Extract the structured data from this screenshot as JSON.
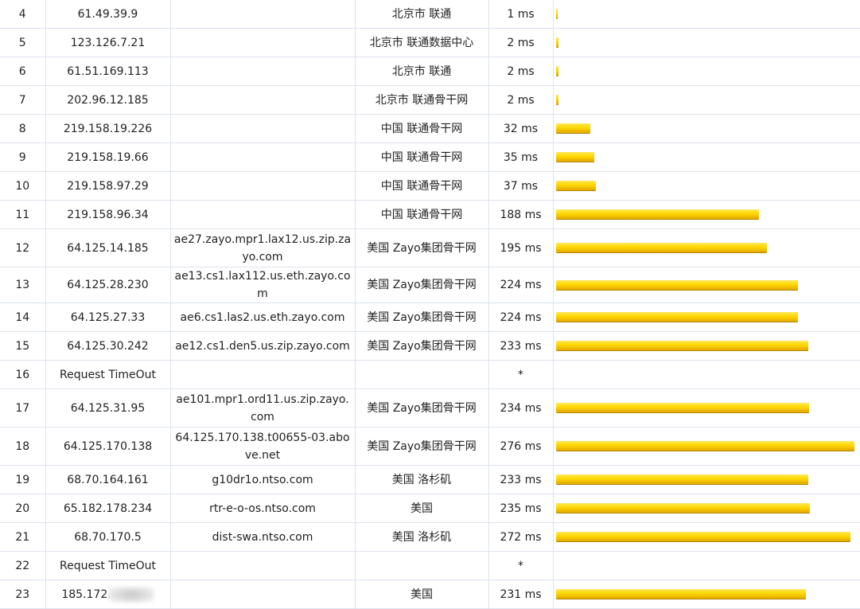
{
  "hops": [
    {
      "hop": "4",
      "ip": "61.49.39.9",
      "host": "",
      "location": "北京市 联通",
      "latency": "1 ms",
      "latency_value": 1
    },
    {
      "hop": "5",
      "ip": "123.126.7.21",
      "host": "",
      "location": "北京市 联通数据中心",
      "latency": "2 ms",
      "latency_value": 2
    },
    {
      "hop": "6",
      "ip": "61.51.169.113",
      "host": "",
      "location": "北京市 联通",
      "latency": "2 ms",
      "latency_value": 2
    },
    {
      "hop": "7",
      "ip": "202.96.12.185",
      "host": "",
      "location": "北京市 联通骨干网",
      "latency": "2 ms",
      "latency_value": 2
    },
    {
      "hop": "8",
      "ip": "219.158.19.226",
      "host": "",
      "location": "中国 联通骨干网",
      "latency": "32 ms",
      "latency_value": 32
    },
    {
      "hop": "9",
      "ip": "219.158.19.66",
      "host": "",
      "location": "中国 联通骨干网",
      "latency": "35 ms",
      "latency_value": 35
    },
    {
      "hop": "10",
      "ip": "219.158.97.29",
      "host": "",
      "location": "中国 联通骨干网",
      "latency": "37 ms",
      "latency_value": 37
    },
    {
      "hop": "11",
      "ip": "219.158.96.34",
      "host": "",
      "location": "中国 联通骨干网",
      "latency": "188 ms",
      "latency_value": 188
    },
    {
      "hop": "12",
      "ip": "64.125.14.185",
      "host": "ae27.zayo.mpr1.lax12.us.zip.zayo.com",
      "location": "美国 Zayo集团骨干网",
      "latency": "195 ms",
      "latency_value": 195
    },
    {
      "hop": "13",
      "ip": "64.125.28.230",
      "host": "ae13.cs1.lax112.us.eth.zayo.com",
      "location": "美国 Zayo集团骨干网",
      "latency": "224 ms",
      "latency_value": 224
    },
    {
      "hop": "14",
      "ip": "64.125.27.33",
      "host": "ae6.cs1.las2.us.eth.zayo.com",
      "location": "美国 Zayo集团骨干网",
      "latency": "224 ms",
      "latency_value": 224
    },
    {
      "hop": "15",
      "ip": "64.125.30.242",
      "host": "ae12.cs1.den5.us.zip.zayo.com",
      "location": "美国 Zayo集团骨干网",
      "latency": "233 ms",
      "latency_value": 233
    },
    {
      "hop": "16",
      "ip": "Request TimeOut",
      "host": "",
      "location": "",
      "latency": "*",
      "latency_value": null
    },
    {
      "hop": "17",
      "ip": "64.125.31.95",
      "host": "ae101.mpr1.ord11.us.zip.zayo.com",
      "location": "美国 Zayo集团骨干网",
      "latency": "234 ms",
      "latency_value": 234
    },
    {
      "hop": "18",
      "ip": "64.125.170.138",
      "host": "64.125.170.138.t00655-03.above.net",
      "location": "美国 Zayo集团骨干网",
      "latency": "276 ms",
      "latency_value": 276
    },
    {
      "hop": "19",
      "ip": "68.70.164.161",
      "host": "g10dr1o.ntso.com",
      "location": "美国 洛杉矶",
      "latency": "233 ms",
      "latency_value": 233
    },
    {
      "hop": "20",
      "ip": "65.182.178.234",
      "host": "rtr-e-o-os.ntso.com",
      "location": "美国",
      "latency": "235 ms",
      "latency_value": 235
    },
    {
      "hop": "21",
      "ip": "68.70.170.5",
      "host": "dist-swa.ntso.com",
      "location": "美国 洛杉矶",
      "latency": "272 ms",
      "latency_value": 272
    },
    {
      "hop": "22",
      "ip": "Request TimeOut",
      "host": "",
      "location": "",
      "latency": "*",
      "latency_value": null
    },
    {
      "hop": "23",
      "ip": "185.172.",
      "host": "",
      "location": "美国",
      "latency": "231 ms",
      "latency_value": 231,
      "ip_redacted": true
    }
  ],
  "bar_scale_max_ms": 276,
  "colors": {
    "bar": "#ffd800",
    "border": "#dde3ec"
  }
}
